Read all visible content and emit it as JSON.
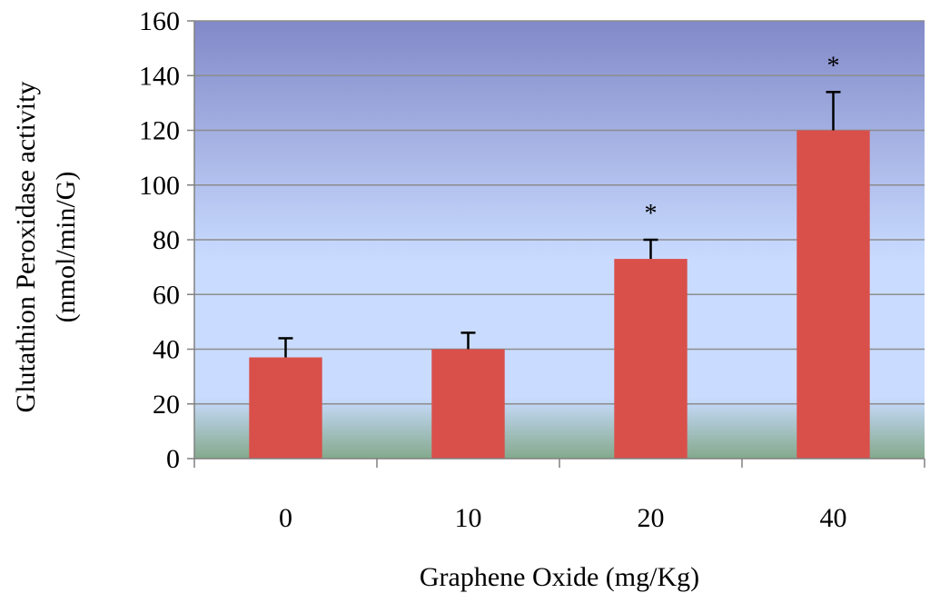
{
  "chart_data": {
    "type": "bar",
    "categories": [
      "0",
      "10",
      "20",
      "40"
    ],
    "values": [
      37,
      40,
      73,
      120
    ],
    "error_upper": [
      44,
      46,
      80,
      134
    ],
    "significance": [
      "",
      "",
      "*",
      "*"
    ],
    "title": "",
    "xlabel": "Graphene Oxide (mg/Kg)",
    "ylabel_line1": "Glutathion Peroxidase activity",
    "ylabel_line2": "(nmol/min/G)",
    "ylim": [
      0,
      160
    ],
    "yticks": [
      "0",
      "20",
      "40",
      "60",
      "80",
      "100",
      "120",
      "140",
      "160"
    ],
    "grid": true,
    "legend": "none",
    "colors": {
      "bar": "#d9504b",
      "error_bar": "#000000",
      "gridline": "#8c8c8c",
      "background_top": "#8289c8",
      "background_mid": "#c9dcff",
      "background_bottom": "#84a98c"
    }
  }
}
